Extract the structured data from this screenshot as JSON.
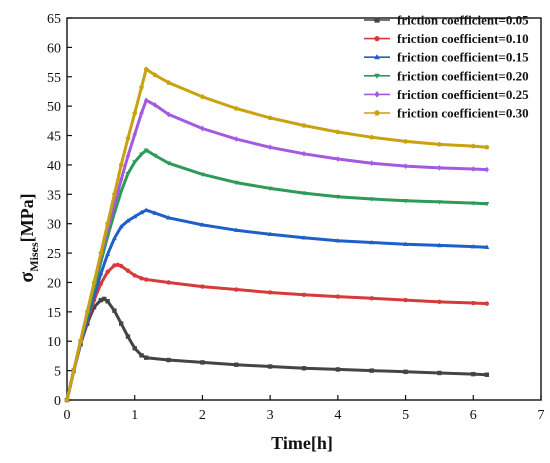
{
  "chart_data": {
    "type": "line",
    "title": "",
    "xlabel": "Time[h]",
    "ylabel": {
      "symbol": "σ",
      "subscript": "Mises",
      "unit": "[MPa]"
    },
    "xlim": [
      0,
      7
    ],
    "ylim": [
      0,
      65
    ],
    "xticks": [
      0,
      1,
      2,
      3,
      4,
      5,
      6,
      7
    ],
    "yticks": [
      0,
      5,
      10,
      15,
      20,
      25,
      30,
      35,
      40,
      45,
      50,
      55,
      60,
      65
    ],
    "grid": false,
    "legend_position": "top-right",
    "series": [
      {
        "name": "friction coefficient=0.05",
        "color": "#444444",
        "marker": "square",
        "x": [
          0,
          0.1,
          0.2,
          0.3,
          0.4,
          0.5,
          0.55,
          0.6,
          0.7,
          0.8,
          0.9,
          1.0,
          1.1,
          1.17,
          1.5,
          2.0,
          2.5,
          3.0,
          3.5,
          4.0,
          4.5,
          5.0,
          5.5,
          6.0,
          6.2
        ],
        "y": [
          0,
          5,
          9.5,
          13,
          15.8,
          17.0,
          17.2,
          16.8,
          15.2,
          13.0,
          10.8,
          8.8,
          7.6,
          7.2,
          6.8,
          6.4,
          6.0,
          5.7,
          5.4,
          5.2,
          5.0,
          4.8,
          4.6,
          4.4,
          4.3
        ]
      },
      {
        "name": "friction coefficient=0.10",
        "color": "#d63a3a",
        "marker": "circle",
        "x": [
          0,
          0.1,
          0.2,
          0.3,
          0.4,
          0.5,
          0.6,
          0.7,
          0.75,
          0.8,
          0.9,
          1.0,
          1.1,
          1.17,
          1.5,
          2.0,
          2.5,
          3.0,
          3.5,
          4.0,
          4.5,
          5.0,
          5.5,
          6.0,
          6.2
        ],
        "y": [
          0,
          5,
          9.5,
          13.5,
          17,
          19.8,
          21.8,
          22.9,
          23.0,
          22.8,
          22.0,
          21.2,
          20.7,
          20.5,
          20.0,
          19.3,
          18.8,
          18.3,
          17.9,
          17.6,
          17.3,
          17.0,
          16.7,
          16.5,
          16.4
        ]
      },
      {
        "name": "friction coefficient=0.15",
        "color": "#1f5fc8",
        "marker": "triangle-up",
        "x": [
          0,
          0.1,
          0.2,
          0.3,
          0.4,
          0.5,
          0.6,
          0.7,
          0.8,
          0.9,
          1.0,
          1.1,
          1.17,
          1.3,
          1.5,
          2.0,
          2.5,
          3.0,
          3.5,
          4.0,
          4.5,
          5.0,
          5.5,
          6.0,
          6.2
        ],
        "y": [
          0,
          5,
          9.5,
          13.8,
          17.8,
          21.5,
          24.8,
          27.5,
          29.5,
          30.5,
          31.2,
          31.9,
          32.3,
          31.8,
          31.0,
          29.8,
          28.9,
          28.2,
          27.6,
          27.1,
          26.8,
          26.5,
          26.3,
          26.1,
          26.0
        ]
      },
      {
        "name": "friction coefficient=0.20",
        "color": "#2e9a5a",
        "marker": "triangle-down",
        "x": [
          0,
          0.1,
          0.2,
          0.3,
          0.4,
          0.5,
          0.6,
          0.7,
          0.8,
          0.9,
          1.0,
          1.1,
          1.17,
          1.3,
          1.5,
          2.0,
          2.5,
          3.0,
          3.5,
          4.0,
          4.5,
          5.0,
          5.5,
          6.0,
          6.2
        ],
        "y": [
          0,
          5,
          10,
          14.5,
          19,
          23.5,
          27.8,
          31.8,
          35.5,
          38.5,
          40.5,
          41.8,
          42.5,
          41.6,
          40.3,
          38.4,
          37.0,
          36.0,
          35.2,
          34.6,
          34.2,
          33.9,
          33.7,
          33.5,
          33.4
        ]
      },
      {
        "name": "friction coefficient=0.25",
        "color": "#a35ae0",
        "marker": "diamond",
        "x": [
          0,
          0.1,
          0.2,
          0.3,
          0.4,
          0.5,
          0.6,
          0.7,
          0.8,
          0.9,
          1.0,
          1.1,
          1.17,
          1.3,
          1.5,
          2.0,
          2.5,
          3.0,
          3.5,
          4.0,
          4.5,
          5.0,
          5.5,
          6.0,
          6.2
        ],
        "y": [
          0,
          5,
          10,
          15,
          19.8,
          24.5,
          29,
          33.3,
          37.5,
          41.5,
          45.2,
          48.8,
          51.0,
          50.2,
          48.6,
          46.2,
          44.4,
          43.0,
          41.9,
          41.0,
          40.3,
          39.8,
          39.5,
          39.3,
          39.2
        ]
      },
      {
        "name": "friction coefficient=0.30",
        "color": "#c9a20f",
        "marker": "pentagon",
        "x": [
          0,
          0.1,
          0.2,
          0.3,
          0.4,
          0.5,
          0.6,
          0.7,
          0.8,
          0.9,
          1.0,
          1.1,
          1.17,
          1.3,
          1.5,
          2.0,
          2.5,
          3.0,
          3.5,
          4.0,
          4.5,
          5.0,
          5.5,
          6.0,
          6.2
        ],
        "y": [
          0,
          5,
          10,
          15,
          20,
          25,
          30,
          35,
          40,
          44.5,
          48.8,
          53.2,
          56.3,
          55.3,
          54.0,
          51.6,
          49.6,
          48.0,
          46.7,
          45.6,
          44.7,
          44.0,
          43.5,
          43.2,
          43.0
        ]
      }
    ]
  }
}
